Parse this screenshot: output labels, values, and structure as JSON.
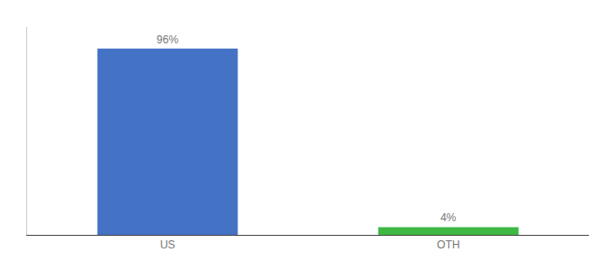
{
  "chart_data": {
    "type": "bar",
    "categories": [
      "US",
      "OTH"
    ],
    "values": [
      96,
      4
    ],
    "value_labels": [
      "96%",
      "4%"
    ],
    "colors": [
      "#4472c4",
      "#3db843"
    ],
    "ylim": [
      0,
      107
    ],
    "grid": false,
    "data_labels": true,
    "tick_labels": "x"
  }
}
